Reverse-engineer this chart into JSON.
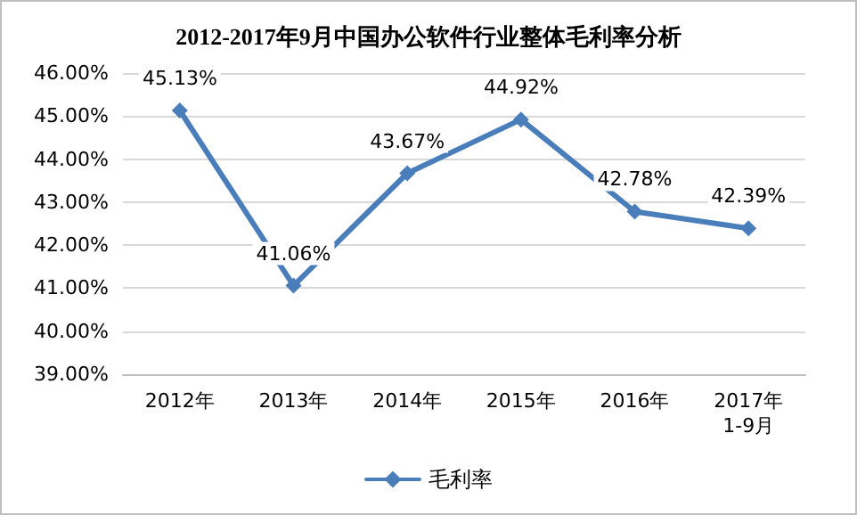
{
  "chart_data": {
    "type": "line",
    "title": "2012-2017年9月中国办公软件行业整体毛利率分析",
    "categories": [
      "2012年",
      "2013年",
      "2014年",
      "2015年",
      "2016年",
      "2017年\n1-9月"
    ],
    "series": [
      {
        "name": "毛利率",
        "color": "#4a7ebb",
        "values": [
          45.13,
          41.06,
          43.67,
          44.92,
          42.78,
          42.39
        ],
        "value_labels": [
          "45.13%",
          "41.06%",
          "43.67%",
          "44.92%",
          "42.78%",
          "42.39%"
        ]
      }
    ],
    "ylim": [
      39,
      46
    ],
    "yticks": [
      {
        "value": 39,
        "label": "39.00%"
      },
      {
        "value": 40,
        "label": "40.00%"
      },
      {
        "value": 41,
        "label": "41.00%"
      },
      {
        "value": 42,
        "label": "42.00%"
      },
      {
        "value": 43,
        "label": "43.00%"
      },
      {
        "value": 44,
        "label": "44.00%"
      },
      {
        "value": 45,
        "label": "45.00%"
      },
      {
        "value": 46,
        "label": "46.00%"
      }
    ],
    "grid": "y",
    "legend": "bottom",
    "marker": "diamond",
    "line_style": "solid"
  }
}
